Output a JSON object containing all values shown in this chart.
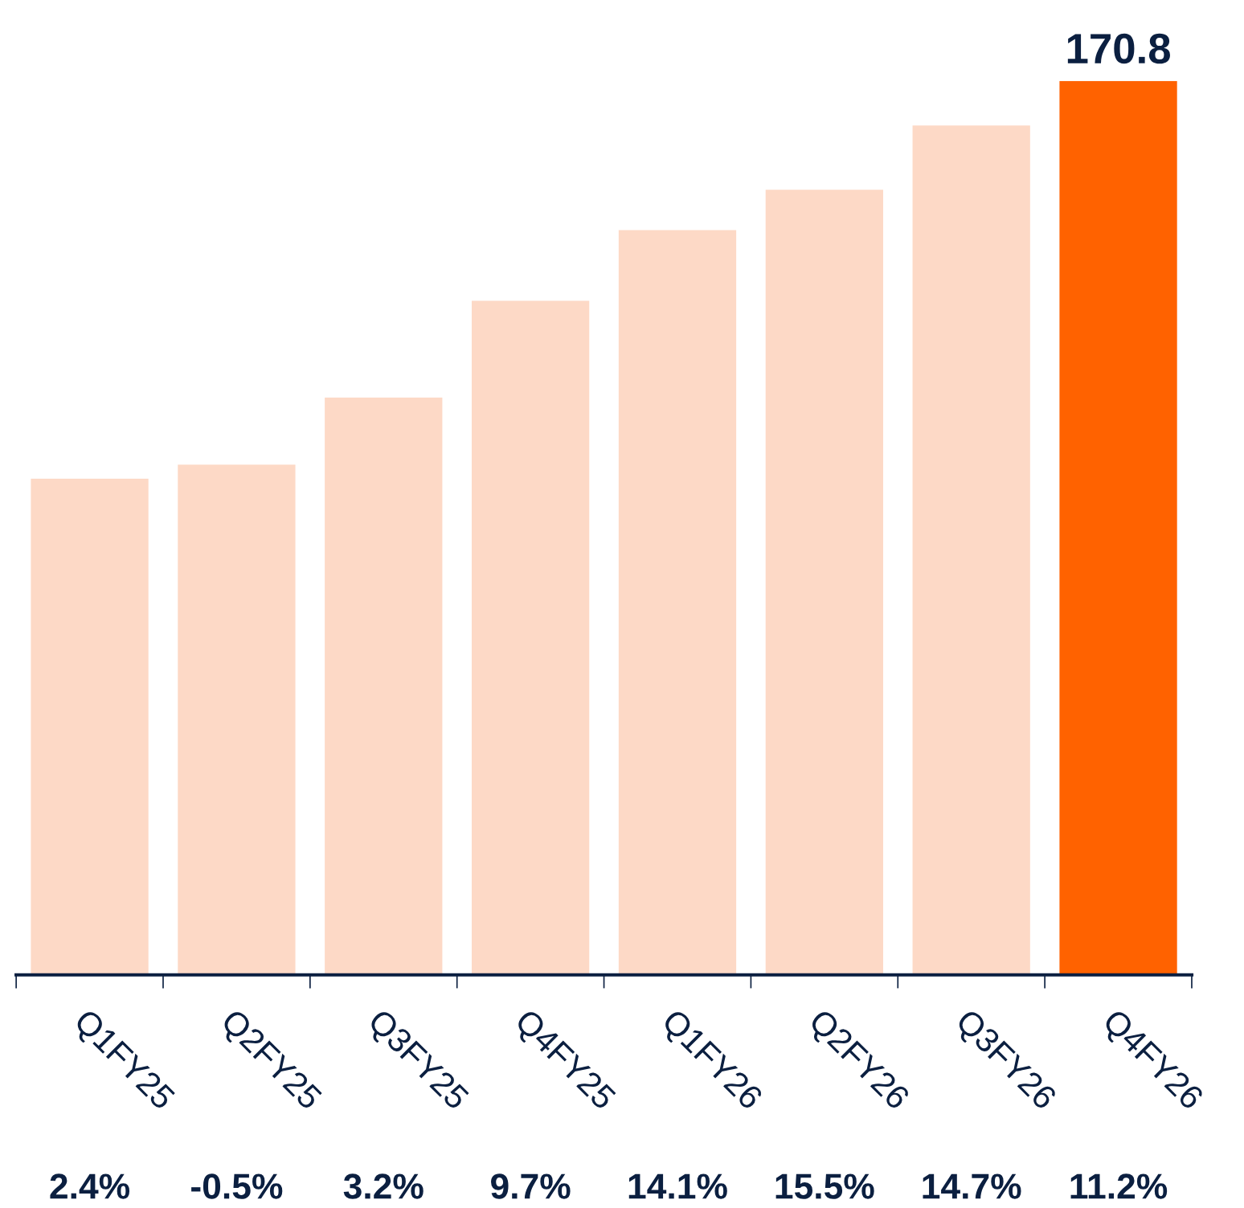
{
  "chart_data": {
    "type": "bar",
    "categories": [
      "Q1FY25",
      "Q2FY25",
      "Q3FY25",
      "Q4FY25",
      "Q1FY26",
      "Q2FY26",
      "Q3FY26",
      "Q4FY26"
    ],
    "values": [
      94.8,
      97.5,
      110.3,
      128.8,
      142.3,
      150.0,
      162.3,
      170.8
    ],
    "colors": [
      "#fdd9c6",
      "#fdd9c6",
      "#fdd9c6",
      "#fdd9c6",
      "#fdd9c6",
      "#fdd9c6",
      "#fdd9c6",
      "#ff6200"
    ],
    "value_labels": [
      null,
      null,
      null,
      null,
      null,
      null,
      null,
      "170.8"
    ],
    "annotations": [
      "2.4%",
      "-0.5%",
      "3.2%",
      "9.7%",
      "14.1%",
      "15.5%",
      "14.7%",
      "11.2%"
    ],
    "grid": false,
    "legend": false
  }
}
